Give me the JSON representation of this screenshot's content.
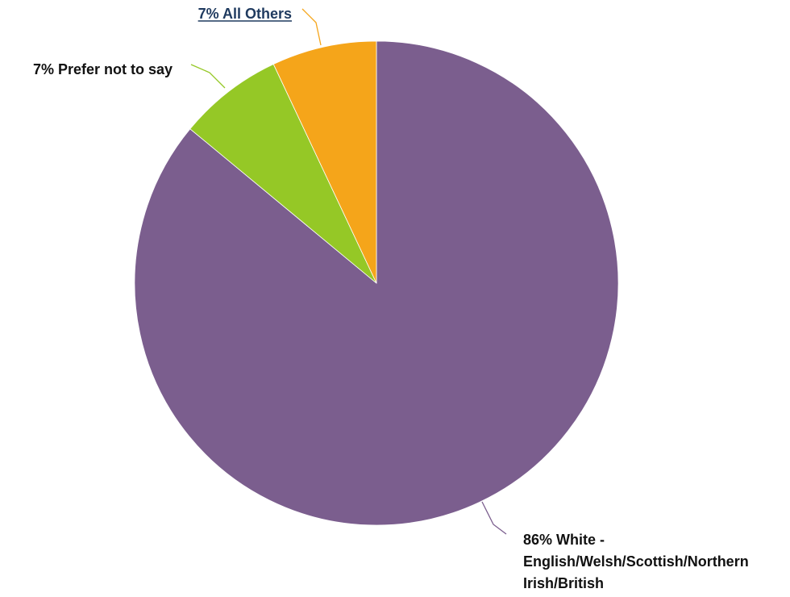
{
  "chart_data": {
    "type": "pie",
    "title": "",
    "start_angle_deg": 0,
    "direction": "clockwise",
    "slices": [
      {
        "value": 86,
        "color": "#7b5e8e",
        "label_lines": [
          "86% White -",
          "English/Welsh/Scottish/Northern",
          "Irish/British"
        ]
      },
      {
        "value": 7,
        "color": "#95c826",
        "label_lines": [
          "7% Prefer not to say"
        ]
      },
      {
        "value": 7,
        "color": "#f5a51a",
        "label_lines": [
          "7% All Others"
        ],
        "link": true
      }
    ],
    "legend": "none"
  }
}
